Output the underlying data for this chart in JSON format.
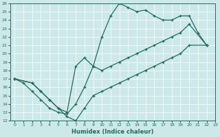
{
  "xlabel": "Humidex (Indice chaleur)",
  "xlim": [
    -0.5,
    23
  ],
  "ylim": [
    12,
    26
  ],
  "xticks": [
    0,
    1,
    2,
    3,
    4,
    5,
    6,
    7,
    8,
    9,
    10,
    11,
    12,
    13,
    14,
    15,
    16,
    17,
    18,
    19,
    20,
    21,
    22,
    23
  ],
  "yticks": [
    12,
    13,
    14,
    15,
    16,
    17,
    18,
    19,
    20,
    21,
    22,
    23,
    24,
    25,
    26
  ],
  "bg_color": "#cce8e8",
  "line_color": "#1f6b5e",
  "line1_x": [
    0,
    1,
    2,
    3,
    4,
    5,
    6,
    7,
    8,
    9,
    10,
    11,
    12,
    13,
    14,
    15,
    16,
    17,
    18,
    19,
    20,
    21,
    22
  ],
  "line1_y": [
    17.0,
    16.5,
    15.5,
    14.5,
    13.5,
    13.0,
    12.8,
    14.0,
    16.0,
    18.5,
    22.0,
    24.5,
    26.0,
    25.5,
    25.0,
    25.2,
    24.5,
    24.0,
    24.0,
    24.5,
    24.5,
    22.5,
    21.0
  ],
  "line2_x": [
    0,
    2,
    3,
    4,
    5,
    6,
    7,
    8,
    9,
    10,
    11,
    12,
    13,
    14,
    15,
    16,
    17,
    18,
    19,
    20,
    22
  ],
  "line2_y": [
    17.0,
    16.5,
    15.5,
    14.5,
    13.5,
    13.0,
    18.5,
    19.5,
    18.5,
    18.0,
    18.5,
    19.0,
    19.5,
    20.0,
    20.5,
    21.0,
    21.5,
    22.0,
    22.5,
    23.5,
    21.0
  ],
  "line3_x": [
    0,
    2,
    3,
    4,
    5,
    6,
    7,
    8,
    9,
    10,
    11,
    12,
    13,
    14,
    15,
    16,
    17,
    18,
    19,
    20,
    22
  ],
  "line3_y": [
    17.0,
    16.5,
    15.5,
    14.5,
    13.5,
    12.5,
    12.0,
    13.5,
    15.0,
    15.5,
    16.0,
    16.5,
    17.0,
    17.5,
    18.0,
    18.5,
    19.0,
    19.5,
    20.0,
    21.0,
    21.0
  ]
}
